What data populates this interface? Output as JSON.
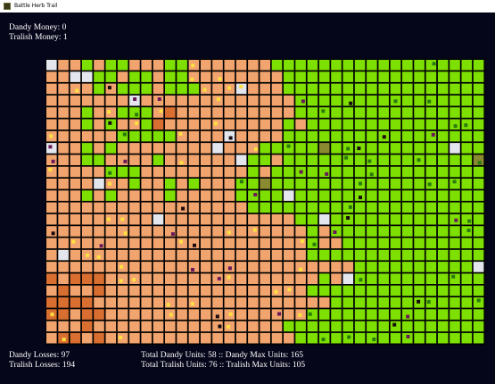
{
  "window": {
    "title": "Battle Herb Trail"
  },
  "money": [
    {
      "label": "Dandy Money:",
      "value": 0
    },
    {
      "label": "Tralish Money:",
      "value": 1
    }
  ],
  "losses": [
    {
      "label": "Dandy Losses:",
      "value": 97
    },
    {
      "label": "Tralish Losses:",
      "value": 194
    }
  ],
  "units": {
    "separator": "::",
    "lines": [
      [
        {
          "label": "Total Dandy Units:",
          "value": 58
        },
        {
          "label": "Dandy Max Units:",
          "value": 165
        }
      ],
      [
        {
          "label": "Total Tralish Units:",
          "value": 76
        },
        {
          "label": "Tralish Max Units:",
          "value": 105
        }
      ]
    ]
  }
}
